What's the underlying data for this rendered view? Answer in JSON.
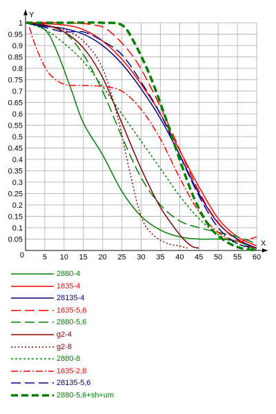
{
  "chart_data": {
    "type": "line",
    "title": "",
    "xlabel": "X",
    "ylabel": "Y",
    "xlim": [
      0,
      60
    ],
    "ylim": [
      0,
      1
    ],
    "x_ticks": [
      0,
      5,
      10,
      15,
      20,
      25,
      30,
      35,
      40,
      45,
      50,
      55,
      60
    ],
    "y_ticks": [
      0.05,
      0.1,
      0.15,
      0.2,
      0.25,
      0.3,
      0.35,
      0.4,
      0.45,
      0.5,
      0.55,
      0.6,
      0.65,
      0.7,
      0.75,
      0.8,
      0.85,
      0.9,
      0.95,
      1
    ],
    "x_tick_labels": [
      "0",
      "5",
      "10",
      "15",
      "20",
      "25",
      "30",
      "35",
      "40",
      "45",
      "50",
      "55",
      "60"
    ],
    "y_tick_labels": [
      "0.05",
      "0.1",
      "0.15",
      "0.2",
      "0.25",
      "0.3",
      "0.35",
      "0.4",
      "0.45",
      "0.5",
      "0.55",
      "0.6",
      "0.65",
      "0.7",
      "0.75",
      "0.8",
      "0.85",
      "0.9",
      "0.95",
      "1"
    ],
    "grid": true,
    "legend_position": "bottom",
    "series": [
      {
        "name": "2880-4",
        "color": "#008000",
        "dash": "solid",
        "width": 1.5,
        "points": [
          [
            0,
            1
          ],
          [
            5,
            0.97
          ],
          [
            8,
            0.88
          ],
          [
            12,
            0.7
          ],
          [
            15,
            0.56
          ],
          [
            20,
            0.42
          ],
          [
            25,
            0.26
          ],
          [
            30,
            0.15
          ],
          [
            35,
            0.09
          ],
          [
            40,
            0.06
          ],
          [
            45,
            0.05
          ],
          [
            50,
            0.05
          ],
          [
            55,
            0.04
          ],
          [
            60,
            0
          ]
        ]
      },
      {
        "name": "1635-4",
        "color": "#ff0000",
        "dash": "solid",
        "width": 1.5,
        "points": [
          [
            0,
            1
          ],
          [
            10,
            0.99
          ],
          [
            15,
            0.97
          ],
          [
            20,
            0.92
          ],
          [
            25,
            0.84
          ],
          [
            30,
            0.73
          ],
          [
            35,
            0.6
          ],
          [
            40,
            0.44
          ],
          [
            45,
            0.28
          ],
          [
            50,
            0.14
          ],
          [
            55,
            0.06
          ],
          [
            60,
            0.02
          ]
        ]
      },
      {
        "name": "28135-4",
        "color": "#000080",
        "dash": "solid",
        "width": 1.5,
        "points": [
          [
            0,
            1
          ],
          [
            5,
            0.985
          ],
          [
            10,
            0.975
          ],
          [
            15,
            0.95
          ],
          [
            20,
            0.9
          ],
          [
            25,
            0.82
          ],
          [
            30,
            0.71
          ],
          [
            35,
            0.58
          ],
          [
            40,
            0.42
          ],
          [
            45,
            0.25
          ],
          [
            50,
            0.12
          ],
          [
            55,
            0.05
          ],
          [
            60,
            0.01
          ]
        ]
      },
      {
        "name": "1635-5,6",
        "color": "#ff0000",
        "dash": "14,6",
        "width": 1.5,
        "points": [
          [
            0,
            1
          ],
          [
            10,
            1
          ],
          [
            18,
            0.99
          ],
          [
            22,
            0.96
          ],
          [
            28,
            0.85
          ],
          [
            33,
            0.7
          ],
          [
            38,
            0.52
          ],
          [
            43,
            0.33
          ],
          [
            48,
            0.17
          ],
          [
            53,
            0.07
          ],
          [
            58,
            0.02
          ],
          [
            60,
            0.01
          ]
        ]
      },
      {
        "name": "2880-5,6",
        "color": "#008000",
        "dash": "14,6",
        "width": 1.5,
        "points": [
          [
            0,
            1
          ],
          [
            5,
            0.99
          ],
          [
            10,
            0.96
          ],
          [
            15,
            0.86
          ],
          [
            20,
            0.7
          ],
          [
            25,
            0.5
          ],
          [
            30,
            0.32
          ],
          [
            35,
            0.2
          ],
          [
            40,
            0.13
          ],
          [
            45,
            0.1
          ],
          [
            50,
            0.08
          ],
          [
            55,
            0.06
          ],
          [
            60,
            0.03
          ]
        ]
      },
      {
        "name": "g2-4",
        "color": "#800000",
        "dash": "solid",
        "width": 1.5,
        "points": [
          [
            0,
            1
          ],
          [
            5,
            0.99
          ],
          [
            10,
            0.96
          ],
          [
            15,
            0.89
          ],
          [
            20,
            0.76
          ],
          [
            25,
            0.56
          ],
          [
            30,
            0.36
          ],
          [
            35,
            0.19
          ],
          [
            40,
            0.07
          ],
          [
            43,
            0.02
          ],
          [
            45,
            0.01
          ]
        ]
      },
      {
        "name": "g2-8",
        "color": "#800000",
        "dash": "2,3",
        "width": 1.5,
        "points": [
          [
            0,
            1
          ],
          [
            5,
            0.99
          ],
          [
            10,
            0.97
          ],
          [
            15,
            0.92
          ],
          [
            20,
            0.8
          ],
          [
            24,
            0.58
          ],
          [
            27,
            0.35
          ],
          [
            30,
            0.15
          ],
          [
            33,
            0.07
          ],
          [
            37,
            0.03
          ],
          [
            40,
            0.02
          ],
          [
            42,
            0.01
          ]
        ]
      },
      {
        "name": "2880-8",
        "color": "#008000",
        "dash": "3,3",
        "width": 1.5,
        "points": [
          [
            0,
            1
          ],
          [
            5,
            0.97
          ],
          [
            10,
            0.91
          ],
          [
            15,
            0.83
          ],
          [
            20,
            0.72
          ],
          [
            25,
            0.6
          ],
          [
            30,
            0.48
          ],
          [
            35,
            0.36
          ],
          [
            40,
            0.24
          ],
          [
            45,
            0.14
          ],
          [
            50,
            0.07
          ],
          [
            55,
            0.03
          ],
          [
            60,
            0
          ]
        ]
      },
      {
        "name": "1635-2,8",
        "color": "#ff0000",
        "dash": "10,3,2,3",
        "width": 1.5,
        "points": [
          [
            1,
            0.98
          ],
          [
            3,
            0.88
          ],
          [
            6,
            0.78
          ],
          [
            10,
            0.73
          ],
          [
            15,
            0.725
          ],
          [
            20,
            0.72
          ],
          [
            25,
            0.7
          ],
          [
            30,
            0.62
          ],
          [
            35,
            0.49
          ],
          [
            40,
            0.32
          ],
          [
            45,
            0.17
          ],
          [
            50,
            0.08
          ],
          [
            55,
            0.04
          ],
          [
            60,
            0.06
          ]
        ]
      },
      {
        "name": "28135-5,6",
        "color": "#000080",
        "dash": "14,6",
        "width": 1.5,
        "points": [
          [
            0,
            1
          ],
          [
            5,
            0.98
          ],
          [
            10,
            0.96
          ],
          [
            15,
            0.96
          ],
          [
            20,
            0.92
          ],
          [
            25,
            0.86
          ],
          [
            30,
            0.74
          ],
          [
            35,
            0.6
          ],
          [
            40,
            0.42
          ],
          [
            45,
            0.24
          ],
          [
            50,
            0.1
          ],
          [
            55,
            0.03
          ],
          [
            60,
            0.01
          ]
        ]
      },
      {
        "name": "2880-5,6+sh+um",
        "color": "#008000",
        "dash": "10,5",
        "width": 3.5,
        "points": [
          [
            0,
            1
          ],
          [
            10,
            1
          ],
          [
            20,
            1
          ],
          [
            25,
            0.99
          ],
          [
            28,
            0.92
          ],
          [
            32,
            0.78
          ],
          [
            36,
            0.6
          ],
          [
            40,
            0.4
          ],
          [
            44,
            0.22
          ],
          [
            48,
            0.1
          ],
          [
            52,
            0.04
          ],
          [
            56,
            0.01
          ],
          [
            60,
            0
          ]
        ]
      }
    ]
  }
}
